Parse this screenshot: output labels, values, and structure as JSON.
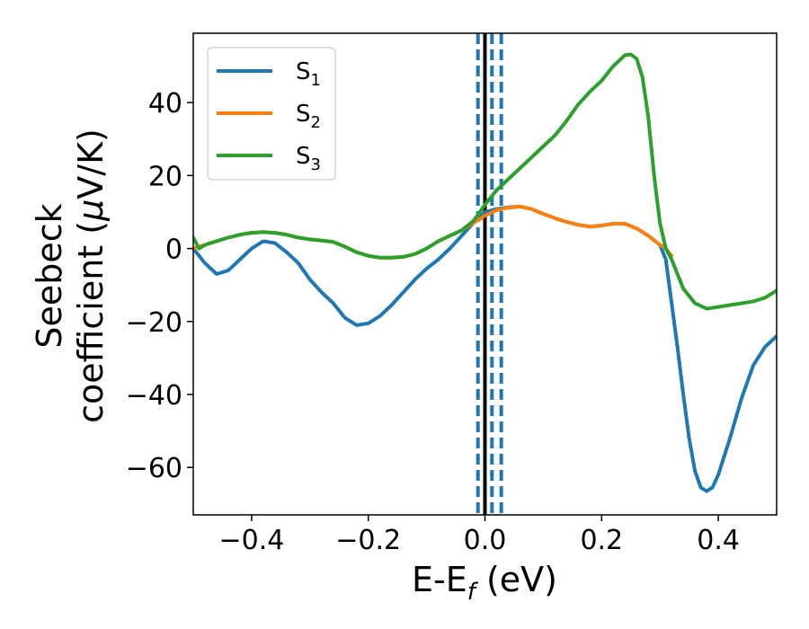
{
  "chart_data": {
    "type": "line",
    "xlabel_main": "E-E",
    "xlabel_sub": "f",
    "xlabel_unit": " (eV)",
    "ylabel_line1": "Seebeck",
    "ylabel_line2_text": "coefficient  (",
    "ylabel_mu": "μ",
    "ylabel_line2_unit": "V/K)",
    "xlim": [
      -0.5,
      0.5
    ],
    "ylim": [
      -73,
      59
    ],
    "xticks": [
      -0.4,
      -0.2,
      0.0,
      0.2,
      0.4
    ],
    "xtick_labels": [
      "−0.4",
      "−0.2",
      "0.0",
      "0.2",
      "0.4"
    ],
    "yticks": [
      -60,
      -40,
      -20,
      0,
      20,
      40
    ],
    "ytick_labels": [
      "−60",
      "−40",
      "−20",
      "0",
      "20",
      "40"
    ],
    "legend_position": "top-left",
    "vertical_lines": [
      {
        "x": 0.0,
        "style": "solid",
        "color": "#000000"
      },
      {
        "x": -0.012,
        "style": "dashed",
        "color": "#1f77b4"
      },
      {
        "x": 0.012,
        "style": "dashed",
        "color": "#1f77b4"
      },
      {
        "x": 0.028,
        "style": "dashed",
        "color": "#1f77b4"
      }
    ],
    "series": [
      {
        "name": "S",
        "sub": "1",
        "color": "#1f77b4",
        "points": [
          [
            -0.5,
            0
          ],
          [
            -0.48,
            -4
          ],
          [
            -0.46,
            -7
          ],
          [
            -0.44,
            -6
          ],
          [
            -0.42,
            -3
          ],
          [
            -0.4,
            0
          ],
          [
            -0.38,
            2
          ],
          [
            -0.36,
            1.5
          ],
          [
            -0.34,
            -1
          ],
          [
            -0.32,
            -4
          ],
          [
            -0.3,
            -8.5
          ],
          [
            -0.28,
            -12
          ],
          [
            -0.26,
            -15
          ],
          [
            -0.24,
            -19
          ],
          [
            -0.22,
            -21
          ],
          [
            -0.2,
            -20.5
          ],
          [
            -0.18,
            -18.5
          ],
          [
            -0.16,
            -15.5
          ],
          [
            -0.14,
            -12
          ],
          [
            -0.12,
            -8.5
          ],
          [
            -0.1,
            -5.5
          ],
          [
            -0.08,
            -3
          ],
          [
            -0.06,
            0
          ],
          [
            -0.04,
            3.5
          ],
          [
            -0.02,
            7
          ],
          [
            0,
            10
          ],
          [
            0.02,
            10.8
          ],
          [
            0.04,
            11.3
          ],
          [
            0.06,
            11.5
          ],
          [
            0.08,
            10.8
          ],
          [
            0.1,
            9.5
          ],
          [
            0.12,
            8.3
          ],
          [
            0.14,
            7.3
          ],
          [
            0.16,
            6.5
          ],
          [
            0.18,
            6
          ],
          [
            0.2,
            6.3
          ],
          [
            0.22,
            6.8
          ],
          [
            0.24,
            6.8
          ],
          [
            0.26,
            5.5
          ],
          [
            0.28,
            3.5
          ],
          [
            0.3,
            1
          ],
          [
            0.31,
            -3
          ],
          [
            0.32,
            -15
          ],
          [
            0.33,
            -27
          ],
          [
            0.34,
            -40
          ],
          [
            0.35,
            -52
          ],
          [
            0.36,
            -61
          ],
          [
            0.37,
            -65.5
          ],
          [
            0.38,
            -66.5
          ],
          [
            0.39,
            -65.5
          ],
          [
            0.4,
            -62
          ],
          [
            0.42,
            -52
          ],
          [
            0.44,
            -41
          ],
          [
            0.46,
            -32
          ],
          [
            0.48,
            -27
          ],
          [
            0.5,
            -24
          ]
        ]
      },
      {
        "name": "S",
        "sub": "2",
        "color": "#ff7f0e",
        "points": [
          [
            -0.5,
            0
          ],
          [
            -0.48,
            1
          ],
          [
            -0.46,
            2
          ],
          [
            -0.44,
            3
          ],
          [
            -0.42,
            3.8
          ],
          [
            -0.4,
            4.3
          ],
          [
            -0.38,
            4.5
          ],
          [
            -0.36,
            4.3
          ],
          [
            -0.34,
            3.8
          ],
          [
            -0.32,
            3
          ],
          [
            -0.3,
            2.5
          ],
          [
            -0.28,
            2.2
          ],
          [
            -0.26,
            1.8
          ],
          [
            -0.24,
            0.5
          ],
          [
            -0.22,
            -1
          ],
          [
            -0.2,
            -2
          ],
          [
            -0.18,
            -2.5
          ],
          [
            -0.16,
            -2.5
          ],
          [
            -0.14,
            -2.3
          ],
          [
            -0.12,
            -1.5
          ],
          [
            -0.1,
            0
          ],
          [
            -0.08,
            2
          ],
          [
            -0.06,
            3.5
          ],
          [
            -0.04,
            5
          ],
          [
            -0.02,
            7
          ],
          [
            0,
            9
          ],
          [
            0.02,
            10.5
          ],
          [
            0.04,
            11.2
          ],
          [
            0.06,
            11.5
          ],
          [
            0.08,
            10.8
          ],
          [
            0.1,
            9.5
          ],
          [
            0.12,
            8.3
          ],
          [
            0.14,
            7.3
          ],
          [
            0.16,
            6.5
          ],
          [
            0.18,
            6
          ],
          [
            0.2,
            6.3
          ],
          [
            0.22,
            6.8
          ],
          [
            0.24,
            6.8
          ],
          [
            0.26,
            5.5
          ],
          [
            0.28,
            3.5
          ],
          [
            0.3,
            1
          ],
          [
            0.31,
            0
          ],
          [
            0.32,
            -2
          ]
        ]
      },
      {
        "name": "S",
        "sub": "3",
        "color": "#2ca02c",
        "points": [
          [
            -0.5,
            3
          ],
          [
            -0.49,
            0
          ],
          [
            -0.48,
            1
          ],
          [
            -0.46,
            2
          ],
          [
            -0.44,
            3
          ],
          [
            -0.42,
            3.8
          ],
          [
            -0.4,
            4.3
          ],
          [
            -0.38,
            4.5
          ],
          [
            -0.36,
            4.3
          ],
          [
            -0.34,
            3.8
          ],
          [
            -0.32,
            3
          ],
          [
            -0.3,
            2.5
          ],
          [
            -0.28,
            2.2
          ],
          [
            -0.26,
            1.8
          ],
          [
            -0.24,
            0.5
          ],
          [
            -0.22,
            -1
          ],
          [
            -0.2,
            -2
          ],
          [
            -0.18,
            -2.5
          ],
          [
            -0.16,
            -2.5
          ],
          [
            -0.14,
            -2.3
          ],
          [
            -0.12,
            -1.5
          ],
          [
            -0.1,
            0
          ],
          [
            -0.08,
            2
          ],
          [
            -0.06,
            3.5
          ],
          [
            -0.04,
            5
          ],
          [
            -0.02,
            7.5
          ],
          [
            0,
            12
          ],
          [
            0.02,
            16
          ],
          [
            0.04,
            19
          ],
          [
            0.06,
            22
          ],
          [
            0.08,
            25
          ],
          [
            0.1,
            28
          ],
          [
            0.12,
            31
          ],
          [
            0.14,
            35
          ],
          [
            0.16,
            39.5
          ],
          [
            0.18,
            43
          ],
          [
            0.2,
            46
          ],
          [
            0.22,
            50
          ],
          [
            0.24,
            53
          ],
          [
            0.25,
            53.2
          ],
          [
            0.26,
            52
          ],
          [
            0.27,
            47
          ],
          [
            0.28,
            36
          ],
          [
            0.29,
            20
          ],
          [
            0.3,
            7
          ],
          [
            0.31,
            0
          ],
          [
            0.32,
            -3
          ],
          [
            0.33,
            -7
          ],
          [
            0.34,
            -11
          ],
          [
            0.36,
            -15
          ],
          [
            0.38,
            -16.5
          ],
          [
            0.4,
            -16
          ],
          [
            0.42,
            -15.5
          ],
          [
            0.44,
            -15
          ],
          [
            0.46,
            -14.5
          ],
          [
            0.48,
            -13.5
          ],
          [
            0.5,
            -11.5
          ]
        ]
      }
    ]
  }
}
